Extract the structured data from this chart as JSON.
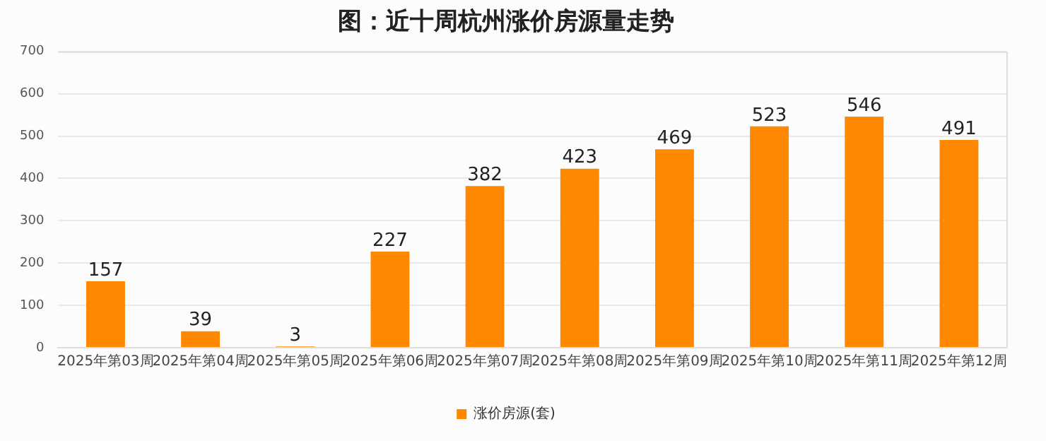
{
  "chart_data": {
    "type": "bar",
    "title": "图：近十周杭州涨价房源量走势",
    "categories": [
      "2025年第03周",
      "2025年第04周",
      "2025年第05周",
      "2025年第06周",
      "2025年第07周",
      "2025年第08周",
      "2025年第09周",
      "2025年第10周",
      "2025年第11周",
      "2025年第12周"
    ],
    "series": [
      {
        "name": "涨价房源(套)",
        "color": "#ff8800",
        "values": [
          157,
          39,
          3,
          227,
          382,
          423,
          469,
          523,
          546,
          491
        ]
      }
    ],
    "ylim": [
      0,
      700
    ],
    "yticks": [
      0,
      100,
      200,
      300,
      400,
      500,
      600,
      700
    ],
    "grid": "y",
    "legend": "bottom",
    "data_labels": true
  }
}
